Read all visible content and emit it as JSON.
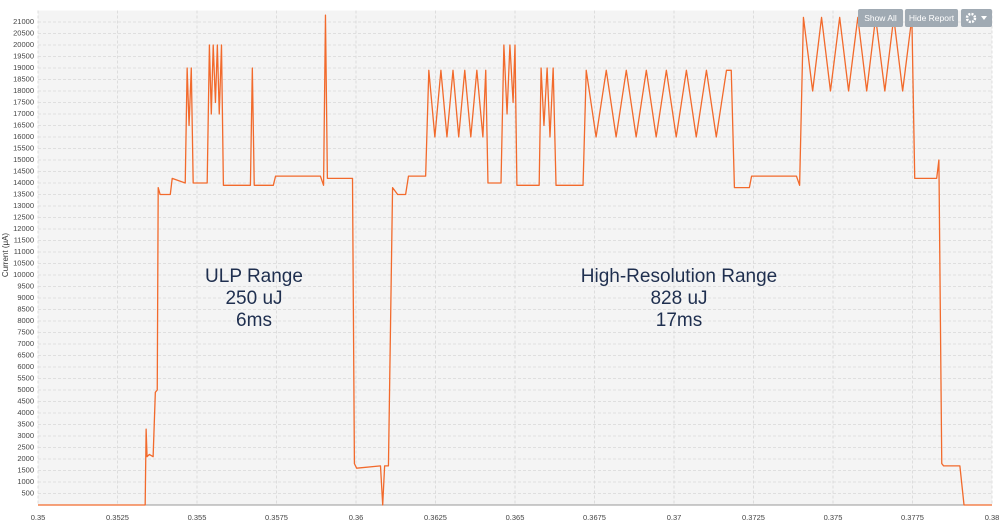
{
  "chart_data": {
    "type": "line",
    "y_label": "Current (μA)",
    "buttons": [
      "Show All",
      "Hide Report"
    ],
    "annotations": [
      [
        "ULP Range",
        "250 uJ",
        "6ms"
      ],
      [
        "High-Resolution Range",
        "828 uJ",
        "17ms"
      ]
    ],
    "grid": true,
    "xlim": [
      0.35,
      0.38
    ],
    "ylim": [
      0,
      21500
    ],
    "xticks": [
      0.35,
      0.3525,
      0.355,
      0.3575,
      0.36,
      0.3625,
      0.365,
      0.3675,
      0.37,
      0.3725,
      0.375,
      0.3775,
      0.38
    ],
    "yticks": [
      500,
      1000,
      1500,
      2000,
      2500,
      3000,
      3500,
      4000,
      4500,
      5000,
      5500,
      6000,
      6500,
      7000,
      7500,
      8000,
      8500,
      9000,
      9500,
      10000,
      10500,
      11000,
      11500,
      12000,
      12500,
      13000,
      13500,
      14000,
      14500,
      15000,
      15500,
      16000,
      16500,
      17000,
      17500,
      18000,
      18500,
      19000,
      19500,
      20000,
      20500,
      21000
    ],
    "series": [
      {
        "color": "#f26a2c",
        "x": [
          0.35,
          0.35337,
          0.3534,
          0.35343,
          0.3535,
          0.35362,
          0.35369,
          0.35375,
          0.35378,
          0.35384,
          0.35416,
          0.35422,
          0.35463,
          0.35469,
          0.35475,
          0.35482,
          0.35488,
          0.35532,
          0.35539,
          0.35545,
          0.35551,
          0.35558,
          0.35564,
          0.3557,
          0.35577,
          0.35583,
          0.35668,
          0.35674,
          0.3568,
          0.3574,
          0.35747,
          0.35888,
          0.35898,
          0.35904,
          0.3591,
          0.35989,
          0.35995,
          0.36002,
          0.36077,
          0.36084,
          0.3609,
          0.36102,
          0.36115,
          0.36131,
          0.36156,
          0.36165,
          0.36219,
          0.36229,
          0.36248,
          0.36267,
          0.36286,
          0.36305,
          0.36323,
          0.36342,
          0.36361,
          0.3638,
          0.36399,
          0.36408,
          0.36415,
          0.36456,
          0.36465,
          0.36475,
          0.36484,
          0.36494,
          0.365,
          0.36506,
          0.36576,
          0.36582,
          0.36591,
          0.36601,
          0.3661,
          0.3662,
          0.36629,
          0.36714,
          0.36724,
          0.36755,
          0.36787,
          0.36818,
          0.3685,
          0.36881,
          0.36913,
          0.36944,
          0.36976,
          0.37007,
          0.37039,
          0.3707,
          0.37102,
          0.37133,
          0.37165,
          0.3718,
          0.3719,
          0.37237,
          0.37244,
          0.37385,
          0.37395,
          0.37407,
          0.37436,
          0.37464,
          0.37492,
          0.37521,
          0.37549,
          0.37578,
          0.37606,
          0.37634,
          0.37663,
          0.37691,
          0.37719,
          0.37748,
          0.37757,
          0.37826,
          0.37833,
          0.37842,
          0.37848,
          0.37899,
          0.37912,
          0.38
        ],
        "values": [
          0,
          0,
          3300,
          2100,
          2200,
          2100,
          4900,
          5000,
          13800,
          13500,
          13500,
          14200,
          14000,
          19000,
          16500,
          19000,
          14000,
          14000,
          20000,
          17000,
          20000,
          17500,
          20000,
          17000,
          20000,
          13900,
          13900,
          19000,
          13900,
          13900,
          14300,
          14300,
          13900,
          21300,
          14200,
          14200,
          1800,
          1600,
          1700,
          0,
          1700,
          1700,
          13800,
          13500,
          13500,
          14300,
          14300,
          18900,
          16000,
          18900,
          16000,
          18900,
          16000,
          18900,
          16000,
          18900,
          16000,
          18900,
          14000,
          14000,
          20000,
          17000,
          20000,
          17500,
          20000,
          13900,
          13900,
          19000,
          16500,
          19000,
          16000,
          19000,
          13900,
          13900,
          18900,
          16000,
          18900,
          16000,
          18900,
          16000,
          18900,
          16000,
          18900,
          16000,
          18900,
          16000,
          18900,
          16000,
          18900,
          18900,
          13800,
          13800,
          14300,
          14300,
          13900,
          21200,
          18000,
          21200,
          18000,
          21200,
          18000,
          21200,
          18000,
          21200,
          18000,
          21200,
          18000,
          21200,
          14200,
          14200,
          15000,
          1800,
          1700,
          1700,
          0,
          0
        ]
      }
    ]
  }
}
